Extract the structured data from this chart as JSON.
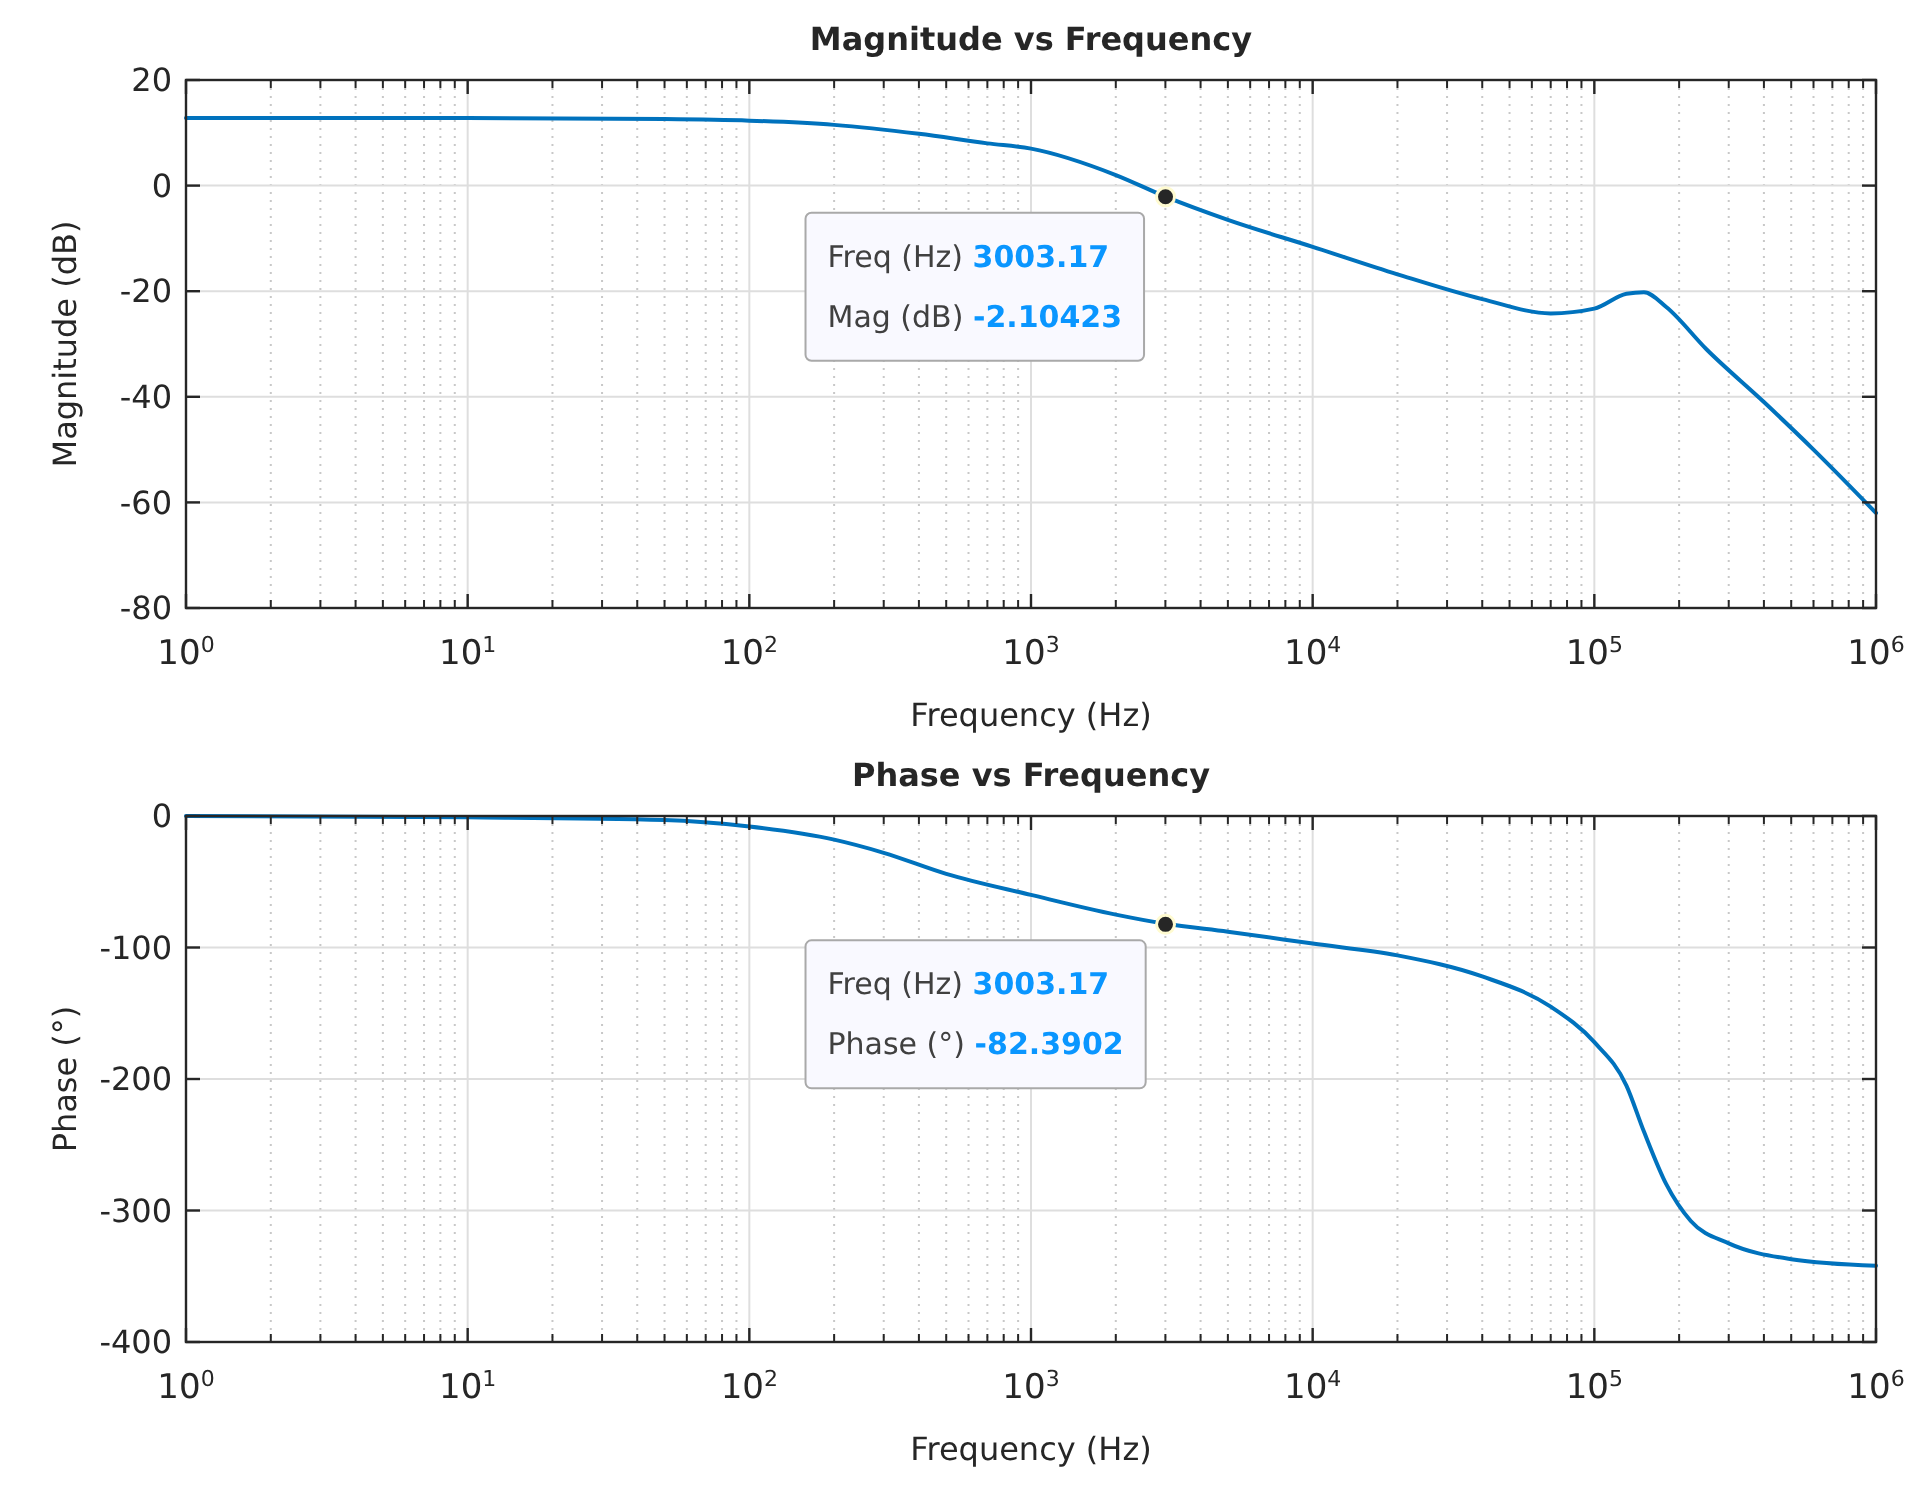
{
  "chart_data": [
    {
      "type": "line",
      "title": "Magnitude vs Frequency",
      "xlabel": "Frequency (Hz)",
      "ylabel": "Magnitude (dB)",
      "log": "x",
      "grid": true,
      "marker": "none",
      "line_style": "solid",
      "xlim": [
        1,
        1000000
      ],
      "ylim": [
        -80,
        20
      ],
      "xticks": [
        {
          "value": 1,
          "label": "10$^{0}$"
        },
        {
          "value": 10,
          "label": "10$^{1}$"
        },
        {
          "value": 100,
          "label": "10$^{2}$"
        },
        {
          "value": 1000,
          "label": "10$^{3}$"
        },
        {
          "value": 10000,
          "label": "10$^{4}$"
        },
        {
          "value": 100000,
          "label": "10$^{5}$"
        },
        {
          "value": 1000000,
          "label": "10$^{6}$"
        }
      ],
      "yticks": [
        -80,
        -60,
        -40,
        -20,
        0,
        20
      ],
      "annotations": [
        {
          "text": "Freq (Hz) 3003.17",
          "x": 3003.17,
          "y": -2.10423
        },
        "Mag (dB) -2.10423"
      ],
      "series": [
        {
          "color": "#0072bd",
          "x": [
            1,
            10,
            50,
            100,
            200,
            400,
            700,
            1000,
            2000,
            3003.17,
            5000,
            10000,
            20000,
            40000,
            70000,
            100000,
            130000,
            150000,
            180000,
            250000,
            400000,
            600000,
            1000000
          ],
          "values": [
            12.8,
            12.8,
            12.6,
            12.3,
            11.5,
            9.8,
            8,
            7,
            2,
            -2.1,
            -6.5,
            -11.6,
            -16.8,
            -21.5,
            -24.2,
            -23.3,
            -20.5,
            -20.2,
            -23,
            -31,
            -41,
            -50,
            -62
          ]
        }
      ]
    },
    {
      "type": "line",
      "title": "Phase vs Frequency",
      "xlabel": "Frequency (Hz)",
      "ylabel": "Phase (°)",
      "log": "x",
      "grid": true,
      "marker": "none",
      "line_style": "solid",
      "xlim": [
        1,
        1000000
      ],
      "ylim": [
        -400,
        0
      ],
      "xticks": [
        {
          "value": 1,
          "label": "10$^{0}$"
        },
        {
          "value": 10,
          "label": "10$^{1}$"
        },
        {
          "value": 100,
          "label": "10$^{2}$"
        },
        {
          "value": 1000,
          "label": "10$^{3}$"
        },
        {
          "value": 10000,
          "label": "10$^{4}$"
        },
        {
          "value": 100000,
          "label": "10$^{5}$"
        },
        {
          "value": 1000000,
          "label": "10$^{6}$"
        }
      ],
      "yticks": [
        -400,
        -300,
        -200,
        -100,
        0
      ],
      "annotations": [
        {
          "text": "Freq (Hz) 3003.17",
          "x": 3003.17,
          "y": -82.3902
        },
        "Phase (°) -82.3902"
      ],
      "series": [
        {
          "color": "#0072bd",
          "x": [
            1,
            10,
            50,
            100,
            200,
            300,
            500,
            1000,
            2000,
            3003.17,
            5000,
            10000,
            20000,
            40000,
            70000,
            100000,
            130000,
            150000,
            180000,
            220000,
            300000,
            500000,
            1000000
          ],
          "values": [
            0,
            -1,
            -3,
            -8,
            -18,
            -28,
            -44,
            -60,
            -75,
            -82,
            -88,
            -97,
            -106,
            -122,
            -145,
            -172,
            -205,
            -240,
            -280,
            -308,
            -325,
            -337,
            -342
          ]
        }
      ]
    }
  ]
}
